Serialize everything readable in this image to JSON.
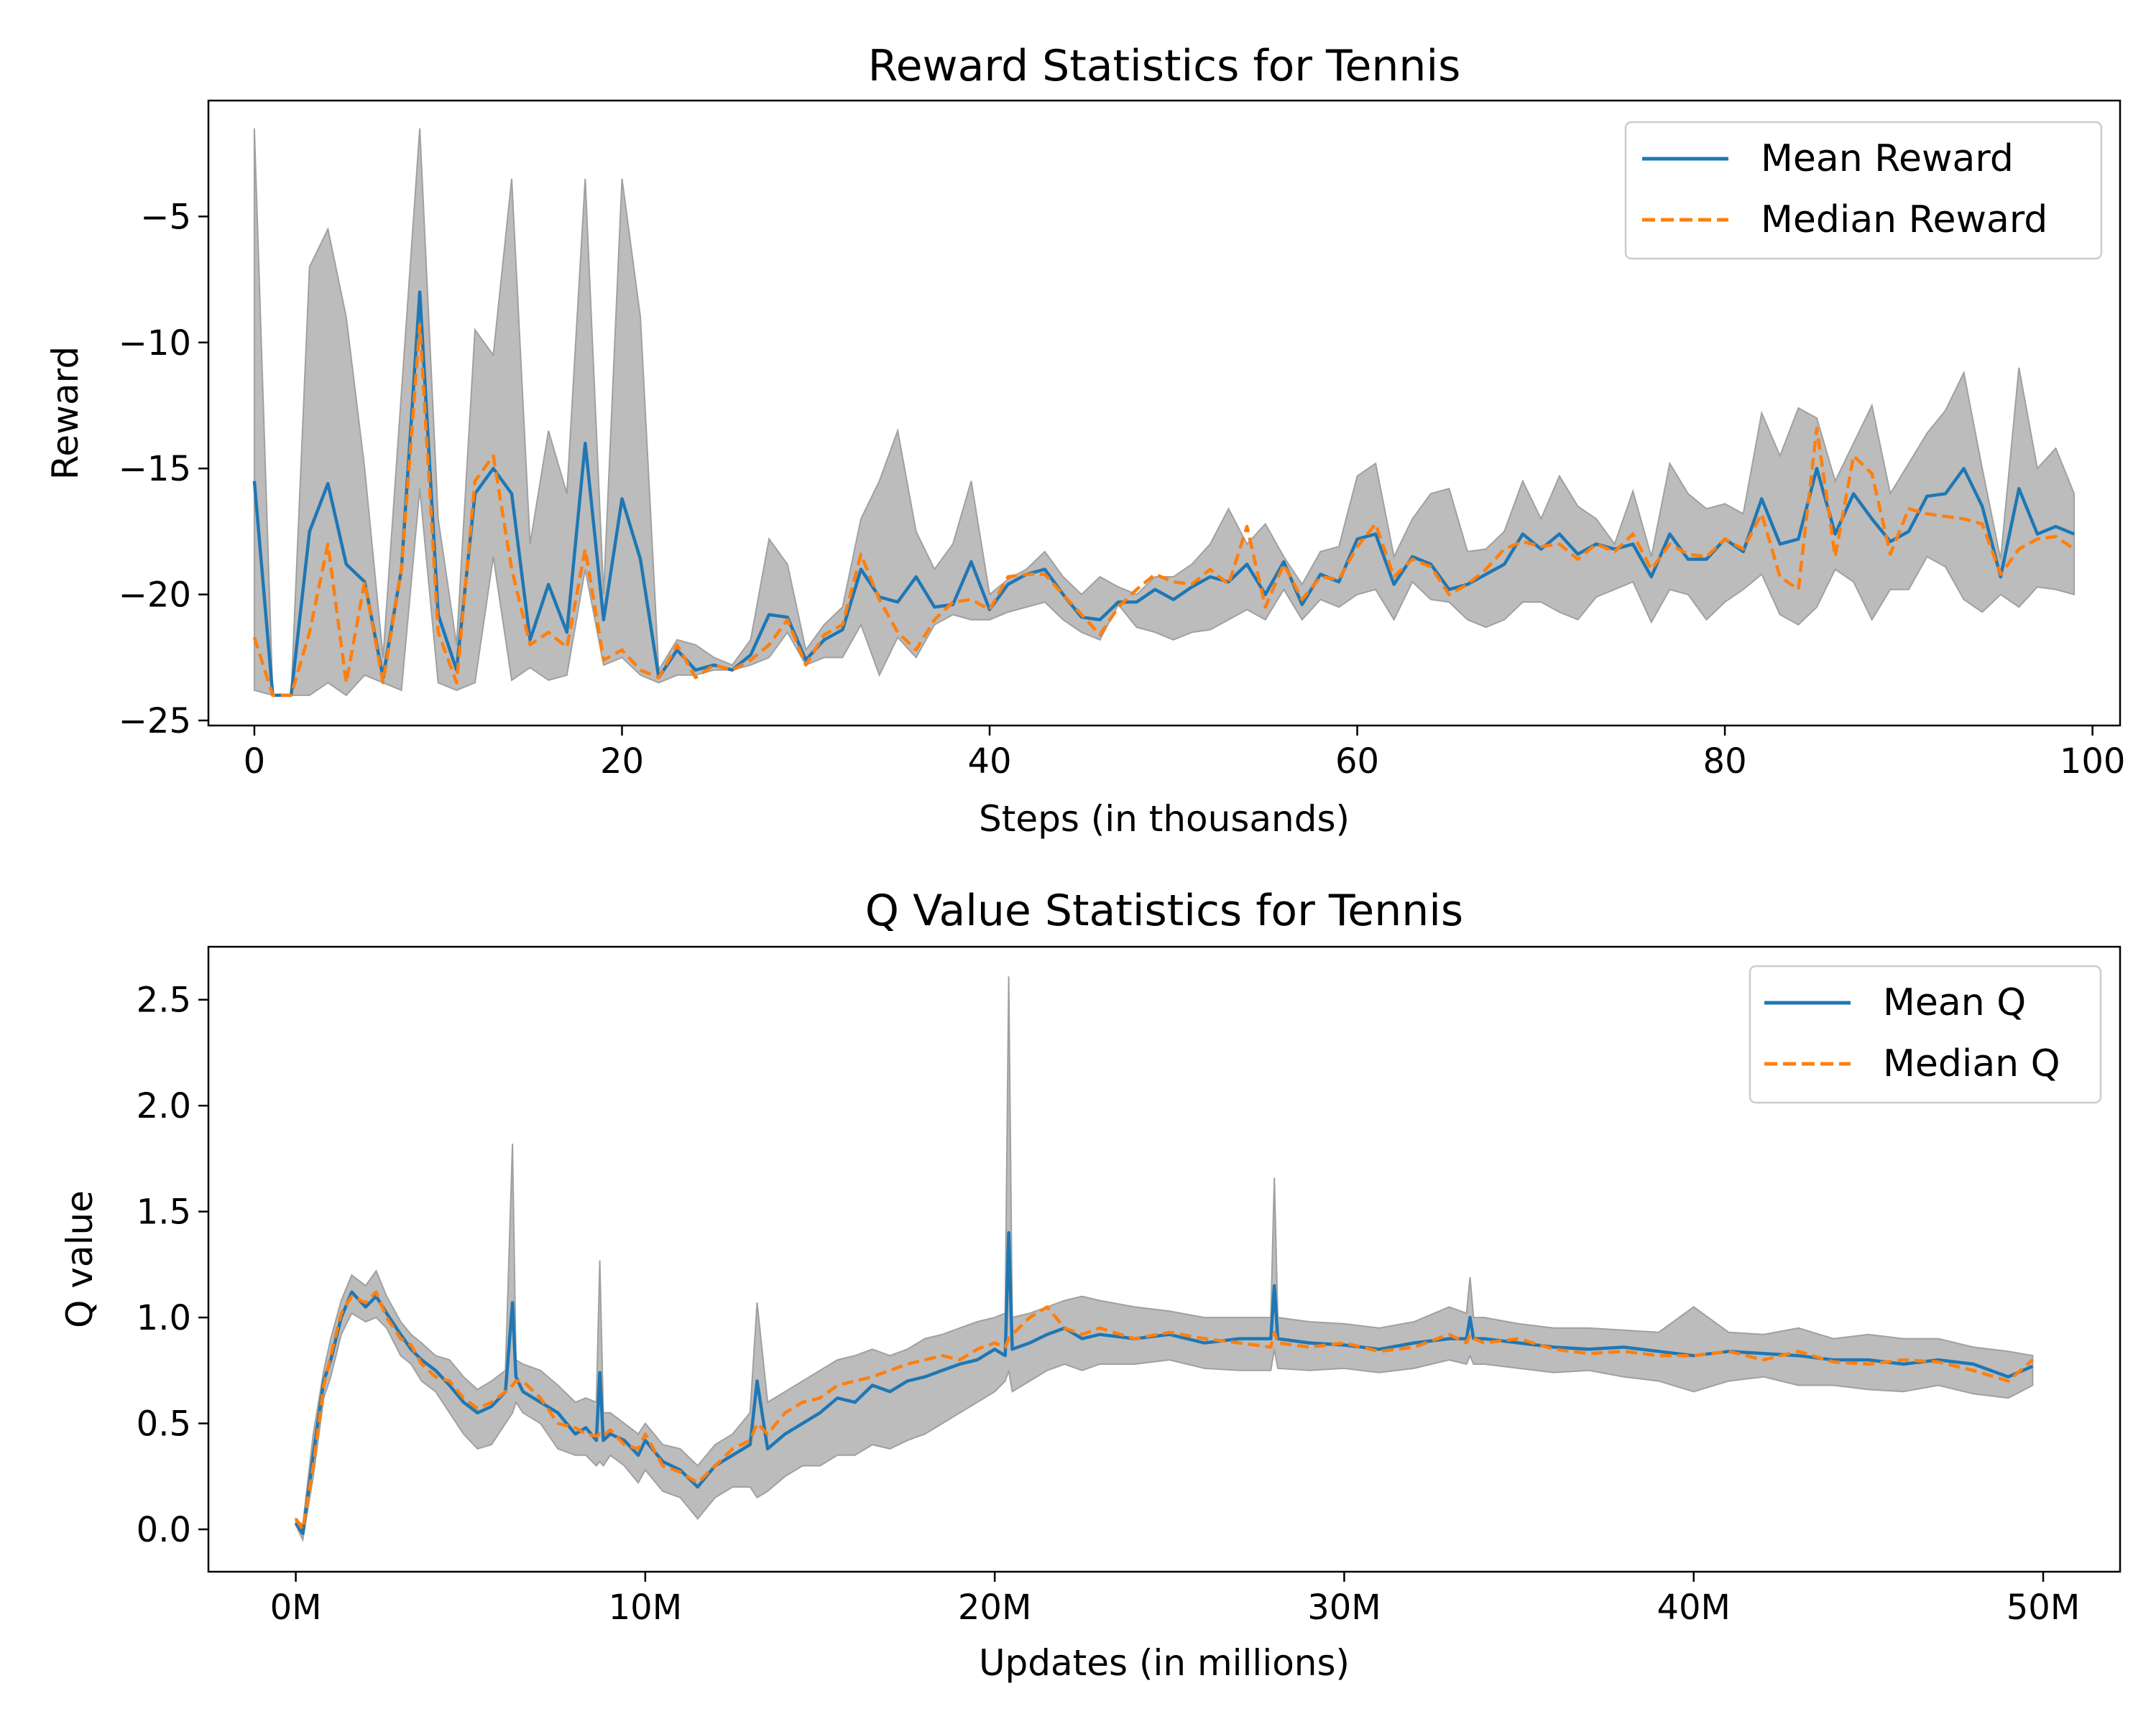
{
  "colors": {
    "mean": "#1f77b4",
    "median": "#ff7f0e",
    "band": "#a0a0a0",
    "axes": "#000000",
    "legend_border": "#cccccc"
  },
  "chart_data": [
    {
      "type": "line",
      "title": "Reward Statistics for Tennis",
      "xlabel": "Steps (in thousands)",
      "ylabel": "Reward",
      "xlim": [
        -2.5,
        101.5
      ],
      "ylim": [
        -25.2,
        -0.4
      ],
      "xticks": [
        0,
        20,
        40,
        60,
        80,
        100
      ],
      "xtick_labels": [
        "0",
        "20",
        "40",
        "60",
        "80",
        "100"
      ],
      "yticks": [
        -25,
        -20,
        -15,
        -10,
        -5
      ],
      "ytick_labels": [
        "−25",
        "−20",
        "−15",
        "−10",
        "−5"
      ],
      "legend_position": "top-right",
      "legend": [
        "Mean Reward",
        "Median Reward"
      ],
      "x_step": 1,
      "series": [
        {
          "name": "Mean Reward",
          "style": "solid",
          "values": [
            -15.5,
            -24,
            -24,
            -17.5,
            -15.6,
            -18.8,
            -19.5,
            -23.3,
            -19,
            -8,
            -20.8,
            -23,
            -16,
            -15,
            -16,
            -21.8,
            -19.6,
            -21.5,
            -14,
            -21,
            -16.2,
            -18.6,
            -23.3,
            -22.2,
            -23,
            -22.8,
            -23,
            -22.4,
            -20.8,
            -20.9,
            -22.6,
            -21.8,
            -21.4,
            -19,
            -20.1,
            -20.3,
            -19.3,
            -20.5,
            -20.4,
            -18.7,
            -20.6,
            -19.6,
            -19.2,
            -19,
            -20,
            -20.9,
            -21,
            -20.3,
            -20.3,
            -19.8,
            -20.2,
            -19.7,
            -19.3,
            -19.5,
            -18.8,
            -20,
            -18.7,
            -20.4,
            -19.2,
            -19.5,
            -17.8,
            -17.6,
            -19.6,
            -18.5,
            -18.8,
            -19.8,
            -19.6,
            -19.2,
            -18.8,
            -17.6,
            -18.2,
            -17.6,
            -18.4,
            -18,
            -18.2,
            -18,
            -19.3,
            -17.6,
            -18.6,
            -18.6,
            -17.8,
            -18.3,
            -16.2,
            -18,
            -17.8,
            -15,
            -17.6,
            -16,
            -17,
            -17.9,
            -17.5,
            -16.1,
            -16,
            -15,
            -16.5,
            -19.3,
            -15.8,
            -17.6,
            -17.3,
            -17.6
          ]
        },
        {
          "name": "Median Reward",
          "style": "dashed",
          "values": [
            -21.7,
            -24,
            -24,
            -21.5,
            -18,
            -23.5,
            -19.5,
            -23.5,
            -19,
            -9.3,
            -21.5,
            -23.5,
            -15.5,
            -14.5,
            -19,
            -22,
            -21.5,
            -22.1,
            -18.2,
            -22.6,
            -22.2,
            -23,
            -23.3,
            -22,
            -23.3,
            -22.8,
            -23,
            -22.6,
            -22,
            -21,
            -22.8,
            -21.6,
            -21.2,
            -18.4,
            -20.2,
            -21.5,
            -22.2,
            -21,
            -20.3,
            -20.2,
            -20.6,
            -19.3,
            -19.2,
            -19.2,
            -20,
            -20.8,
            -21.6,
            -20.5,
            -19.8,
            -19.2,
            -19.5,
            -19.6,
            -19,
            -19.6,
            -17.3,
            -20.5,
            -18.8,
            -20.2,
            -19.3,
            -19.4,
            -18.1,
            -17.2,
            -19.3,
            -18.6,
            -18.9,
            -20,
            -19.6,
            -19,
            -18.2,
            -17.9,
            -18.1,
            -18,
            -18.6,
            -18,
            -18.3,
            -17.6,
            -19,
            -18,
            -18.4,
            -18.5,
            -17.8,
            -18.2,
            -16.8,
            -19.3,
            -19.8,
            -13.4,
            -18.5,
            -14.5,
            -15.2,
            -18.4,
            -16.6,
            -16.8,
            -16.9,
            -17,
            -17.2,
            -19.2,
            -18.2,
            -17.8,
            -17.7,
            -18.2
          ]
        },
        {
          "name": "band_upper",
          "values": [
            -1.5,
            -24,
            -24,
            -7,
            -5.5,
            -9,
            -15,
            -22.5,
            -12,
            -1.5,
            -17,
            -22,
            -9.5,
            -10.5,
            -3.5,
            -18,
            -13.5,
            -16,
            -3.5,
            -20,
            -3.5,
            -9,
            -23,
            -21.8,
            -22,
            -22.5,
            -22.8,
            -21.8,
            -17.8,
            -18.8,
            -22.2,
            -21.2,
            -20.5,
            -17,
            -15.5,
            -13.5,
            -17.5,
            -19,
            -18,
            -15.5,
            -20,
            -19.4,
            -19,
            -18.3,
            -19.3,
            -20,
            -19.3,
            -19.7,
            -20,
            -19.3,
            -19.3,
            -18.8,
            -18,
            -16.6,
            -18,
            -17.2,
            -18.5,
            -19.6,
            -18.3,
            -18.1,
            -15.3,
            -14.8,
            -18.5,
            -17,
            -16,
            -15.8,
            -18.3,
            -18.2,
            -17.5,
            -15.5,
            -17,
            -15.3,
            -16.5,
            -17,
            -18,
            -15.9,
            -18.5,
            -14.8,
            -16,
            -16.6,
            -16.4,
            -16.8,
            -12.8,
            -14.5,
            -12.6,
            -13,
            -15.5,
            -14,
            -12.5,
            -16,
            -14.8,
            -13.6,
            -12.7,
            -11.2,
            -15,
            -18.6,
            -11,
            -15,
            -14.2,
            -16
          ]
        },
        {
          "name": "band_lower",
          "values": [
            -23.8,
            -24,
            -24,
            -24,
            -23.5,
            -24,
            -23.2,
            -23.5,
            -23.8,
            -15.8,
            -23.5,
            -23.8,
            -23.5,
            -18.5,
            -23.4,
            -22.9,
            -23.4,
            -23.2,
            -19,
            -22.8,
            -22.5,
            -23.2,
            -23.5,
            -23.2,
            -23.2,
            -23,
            -23,
            -22.8,
            -22.5,
            -21.5,
            -22.8,
            -22.5,
            -22.5,
            -21.2,
            -23.2,
            -21.7,
            -22.5,
            -21.2,
            -20.8,
            -21,
            -21,
            -20.7,
            -20.5,
            -20.3,
            -21,
            -21.5,
            -21.8,
            -20.4,
            -21.3,
            -21.5,
            -21.8,
            -21.5,
            -21.4,
            -21,
            -20.6,
            -21,
            -19.8,
            -21,
            -20.2,
            -20.5,
            -20,
            -19.8,
            -21,
            -19.5,
            -20.2,
            -20.3,
            -21,
            -21.3,
            -21,
            -20.3,
            -20.3,
            -20.7,
            -21,
            -20.1,
            -19.8,
            -19.5,
            -21.1,
            -19.8,
            -20,
            -21,
            -20.3,
            -19.8,
            -19.2,
            -20.8,
            -21.2,
            -20.5,
            -19,
            -19.5,
            -21,
            -19.8,
            -19.8,
            -18.5,
            -18.9,
            -20.2,
            -20.7,
            -20,
            -20.5,
            -19.7,
            -19.8,
            -20
          ]
        }
      ]
    },
    {
      "type": "line",
      "title": "Q Value Statistics for Tennis",
      "xlabel": "Updates (in millions)",
      "ylabel": "Q value",
      "xlim": [
        -2.5,
        52.2
      ],
      "ylim": [
        -0.2,
        2.75
      ],
      "xticks": [
        0,
        10,
        20,
        30,
        40,
        50
      ],
      "xtick_labels": [
        "0M",
        "10M",
        "20M",
        "30M",
        "40M",
        "50M"
      ],
      "yticks": [
        0.0,
        0.5,
        1.0,
        1.5,
        2.0,
        2.5
      ],
      "ytick_labels": [
        "0.0",
        "0.5",
        "1.0",
        "1.5",
        "2.0",
        "2.5"
      ],
      "legend_position": "top-right",
      "legend": [
        "Mean Q",
        "Median Q"
      ],
      "x": [
        0,
        0.2,
        0.5,
        0.8,
        1,
        1.3,
        1.6,
        2,
        2.3,
        2.6,
        3,
        3.3,
        3.6,
        4,
        4.4,
        4.8,
        5.2,
        5.6,
        6,
        6.2,
        6.3,
        6.5,
        7,
        7.5,
        8,
        8.3,
        8.6,
        8.7,
        8.8,
        9,
        9.4,
        9.8,
        10,
        10.5,
        11,
        11.5,
        12,
        12.5,
        13,
        13.2,
        13.5,
        14,
        14.5,
        15,
        15.5,
        16,
        16.5,
        17,
        17.5,
        18,
        18.5,
        19,
        19.5,
        20,
        20.3,
        20.4,
        20.5,
        21,
        21.5,
        22,
        22.5,
        23,
        24,
        25,
        26,
        27,
        27.9,
        28,
        28.1,
        29,
        30,
        31,
        32,
        33,
        33.5,
        33.6,
        33.7,
        34,
        35,
        36,
        37,
        38,
        39,
        40,
        41,
        42,
        43,
        44,
        45,
        46,
        47,
        48,
        49,
        49.7
      ],
      "series": [
        {
          "name": "Mean Q",
          "style": "solid",
          "values": [
            0.03,
            -0.02,
            0.35,
            0.7,
            0.8,
            1.0,
            1.12,
            1.05,
            1.1,
            1.02,
            0.92,
            0.85,
            0.8,
            0.75,
            0.68,
            0.6,
            0.55,
            0.58,
            0.65,
            1.07,
            0.72,
            0.65,
            0.6,
            0.55,
            0.45,
            0.48,
            0.42,
            0.74,
            0.42,
            0.45,
            0.42,
            0.35,
            0.42,
            0.32,
            0.28,
            0.2,
            0.3,
            0.35,
            0.4,
            0.7,
            0.38,
            0.45,
            0.5,
            0.55,
            0.62,
            0.6,
            0.68,
            0.65,
            0.7,
            0.72,
            0.75,
            0.78,
            0.8,
            0.85,
            0.82,
            1.4,
            0.85,
            0.88,
            0.92,
            0.95,
            0.9,
            0.92,
            0.9,
            0.92,
            0.88,
            0.9,
            0.9,
            1.15,
            0.9,
            0.88,
            0.87,
            0.85,
            0.88,
            0.9,
            0.9,
            1.0,
            0.9,
            0.9,
            0.88,
            0.86,
            0.85,
            0.86,
            0.84,
            0.82,
            0.84,
            0.83,
            0.82,
            0.8,
            0.8,
            0.78,
            0.8,
            0.78,
            0.72,
            0.77
          ]
        },
        {
          "name": "Median Q",
          "style": "dashed",
          "values": [
            0.05,
            0,
            0.3,
            0.68,
            0.82,
            1.02,
            1.1,
            1.07,
            1.12,
            1.0,
            0.9,
            0.87,
            0.78,
            0.72,
            0.7,
            0.62,
            0.57,
            0.6,
            0.65,
            0.68,
            0.7,
            0.7,
            0.62,
            0.5,
            0.48,
            0.45,
            0.44,
            0.45,
            0.44,
            0.47,
            0.4,
            0.38,
            0.45,
            0.3,
            0.27,
            0.22,
            0.3,
            0.38,
            0.42,
            0.5,
            0.45,
            0.55,
            0.6,
            0.62,
            0.68,
            0.7,
            0.72,
            0.75,
            0.78,
            0.8,
            0.82,
            0.8,
            0.85,
            0.88,
            0.86,
            0.9,
            0.92,
            1.0,
            1.05,
            0.95,
            0.92,
            0.95,
            0.9,
            0.93,
            0.9,
            0.88,
            0.86,
            0.93,
            0.88,
            0.86,
            0.88,
            0.84,
            0.86,
            0.92,
            0.88,
            0.92,
            0.9,
            0.88,
            0.9,
            0.85,
            0.83,
            0.84,
            0.82,
            0.82,
            0.84,
            0.8,
            0.84,
            0.79,
            0.78,
            0.8,
            0.79,
            0.75,
            0.7,
            0.8
          ]
        },
        {
          "name": "band_upper",
          "values": [
            0.05,
            0.02,
            0.45,
            0.75,
            0.9,
            1.08,
            1.2,
            1.15,
            1.22,
            1.1,
            0.98,
            0.92,
            0.88,
            0.82,
            0.8,
            0.72,
            0.66,
            0.7,
            0.75,
            1.82,
            0.8,
            0.78,
            0.75,
            0.68,
            0.6,
            0.62,
            0.6,
            1.27,
            0.55,
            0.55,
            0.5,
            0.45,
            0.5,
            0.4,
            0.38,
            0.3,
            0.4,
            0.45,
            0.55,
            1.07,
            0.6,
            0.65,
            0.7,
            0.75,
            0.8,
            0.82,
            0.85,
            0.82,
            0.85,
            0.9,
            0.92,
            0.95,
            0.98,
            1.0,
            1.02,
            2.61,
            1.0,
            1.02,
            1.05,
            1.08,
            1.1,
            1.08,
            1.05,
            1.03,
            1.0,
            1.0,
            1.0,
            1.66,
            1.0,
            0.98,
            0.97,
            0.95,
            0.98,
            1.05,
            1.02,
            1.19,
            1.0,
            1.0,
            0.97,
            0.95,
            0.95,
            0.94,
            0.93,
            1.05,
            0.93,
            0.92,
            0.95,
            0.9,
            0.92,
            0.9,
            0.9,
            0.86,
            0.84,
            0.82
          ]
        },
        {
          "name": "band_lower",
          "values": [
            0.02,
            -0.05,
            0.25,
            0.62,
            0.72,
            0.92,
            1.02,
            0.98,
            1.0,
            0.95,
            0.82,
            0.78,
            0.7,
            0.65,
            0.55,
            0.45,
            0.38,
            0.4,
            0.5,
            0.55,
            0.6,
            0.55,
            0.5,
            0.38,
            0.35,
            0.35,
            0.3,
            0.32,
            0.3,
            0.35,
            0.3,
            0.22,
            0.28,
            0.18,
            0.15,
            0.05,
            0.15,
            0.2,
            0.2,
            0.15,
            0.18,
            0.25,
            0.3,
            0.3,
            0.35,
            0.35,
            0.4,
            0.38,
            0.42,
            0.45,
            0.5,
            0.55,
            0.6,
            0.65,
            0.7,
            0.75,
            0.65,
            0.7,
            0.75,
            0.78,
            0.75,
            0.78,
            0.78,
            0.8,
            0.76,
            0.75,
            0.75,
            0.85,
            0.76,
            0.75,
            0.76,
            0.74,
            0.76,
            0.8,
            0.78,
            0.82,
            0.78,
            0.78,
            0.76,
            0.74,
            0.75,
            0.72,
            0.7,
            0.65,
            0.7,
            0.72,
            0.68,
            0.68,
            0.66,
            0.65,
            0.68,
            0.64,
            0.62,
            0.68
          ]
        }
      ]
    }
  ]
}
